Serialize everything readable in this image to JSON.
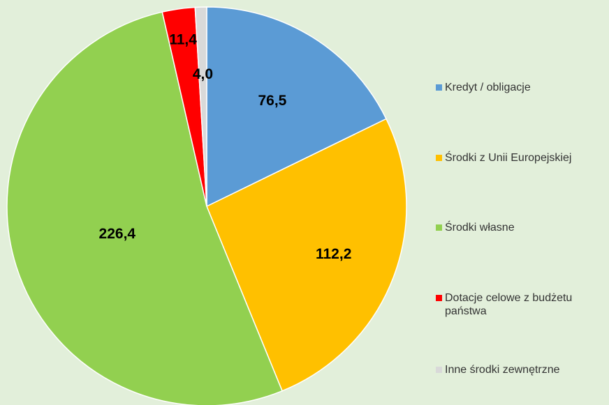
{
  "chart_data": {
    "type": "pie",
    "categories": [
      "Kredyt / obligacje",
      "Środki z Unii Europejskiej",
      "Środki własne",
      "Dotacje celowe z budżetu państwa",
      "Inne środki zewnętrzne"
    ],
    "values": [
      76.5,
      112.2,
      226.4,
      11.4,
      4.0
    ],
    "value_labels": [
      "76,5",
      "112,2",
      "226,4",
      "11,4",
      "4,0"
    ],
    "colors": [
      "#5b9bd5",
      "#ffc000",
      "#92d050",
      "#ff0000",
      "#d9d9d9"
    ],
    "legend": "right"
  }
}
